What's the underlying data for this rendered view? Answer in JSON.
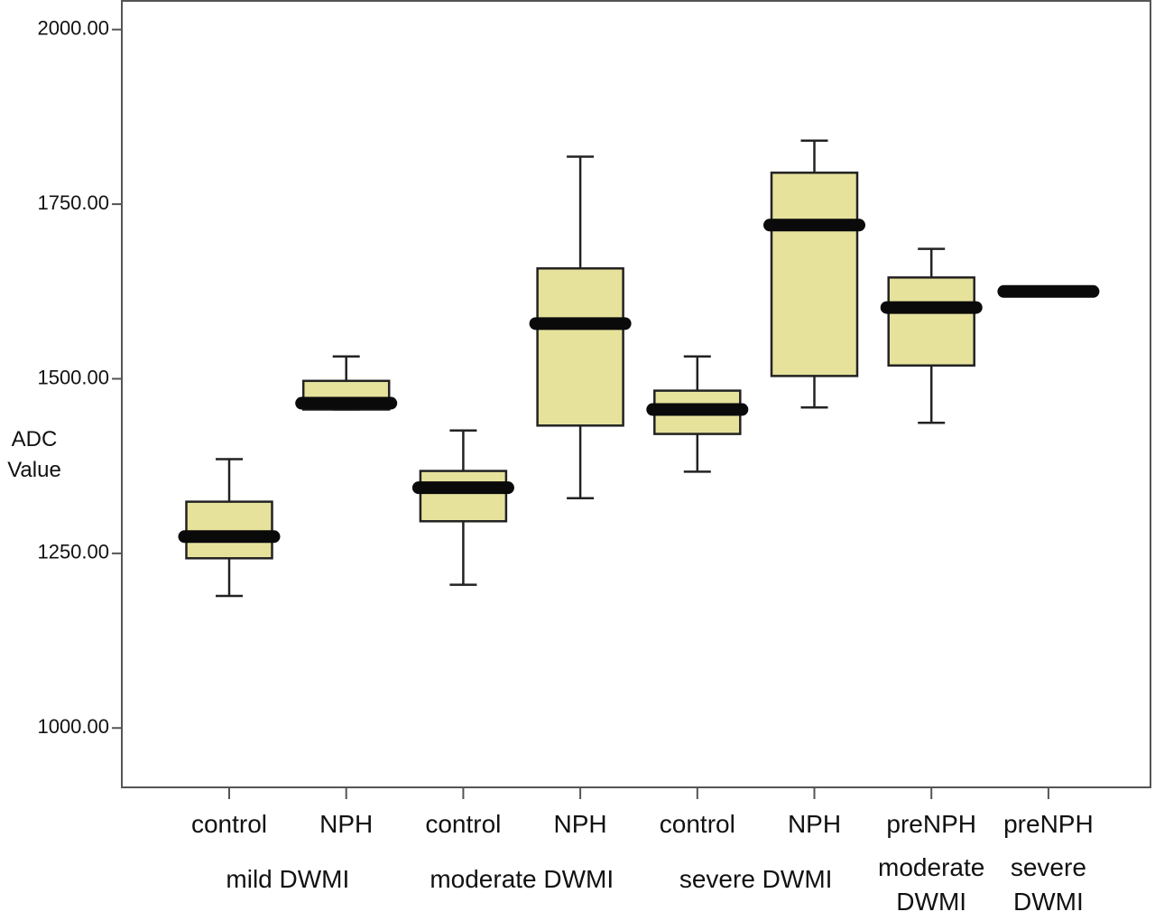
{
  "chart_data": {
    "type": "box",
    "y_label": "ADC Value",
    "categories": [
      "control",
      "NPH",
      "control",
      "NPH",
      "control",
      "NPH",
      "preNPH",
      "preNPH"
    ],
    "groups": [
      "mild DWMI",
      "moderate DWMI",
      "severe DWMI",
      "moderate DWMI",
      "severe DWMI"
    ],
    "values": [
      {
        "min": 1189,
        "q1": 1243,
        "median": 1274,
        "q3": 1324,
        "max": 1385
      },
      {
        "min": 1456,
        "q1": 1456,
        "median": 1465,
        "q3": 1497,
        "max": 1532
      },
      {
        "min": 1205,
        "q1": 1296,
        "median": 1344,
        "q3": 1368,
        "max": 1426
      },
      {
        "min": 1329,
        "q1": 1433,
        "median": 1579,
        "q3": 1658,
        "max": 1818
      },
      {
        "min": 1367,
        "q1": 1421,
        "median": 1456,
        "q3": 1483,
        "max": 1532
      },
      {
        "min": 1459,
        "q1": 1504,
        "median": 1720,
        "q3": 1795,
        "max": 1841
      },
      {
        "min": 1437,
        "q1": 1519,
        "median": 1602,
        "q3": 1645,
        "max": 1686
      },
      {
        "min": 1625,
        "q1": 1625,
        "median": 1625,
        "q3": 1625,
        "max": 1625
      }
    ],
    "color": "#e6e29c",
    "ylim": [
      915,
      2041
    ],
    "yticks": [
      {
        "value": 1000,
        "label": "1000.00"
      },
      {
        "value": 1250,
        "label": "1250.00"
      },
      {
        "value": 1500,
        "label": "1500.00"
      },
      {
        "value": 1750,
        "label": "1750.00"
      },
      {
        "value": 2000,
        "label": "2000.00"
      }
    ]
  }
}
